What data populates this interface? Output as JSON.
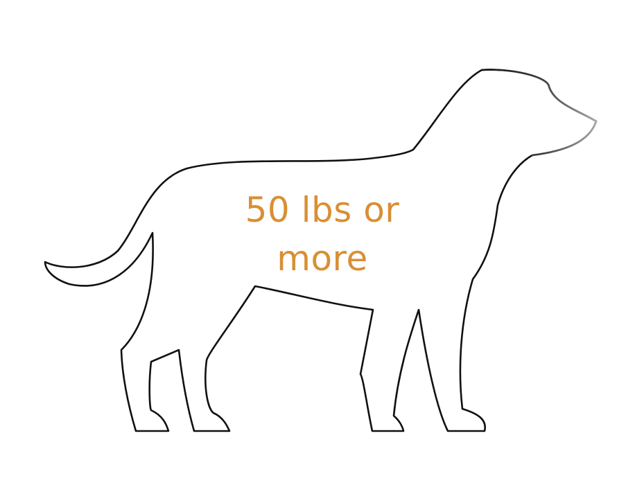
{
  "label": {
    "line1": "50 lbs or",
    "line2": "more"
  },
  "colors": {
    "label_text": "#D98F35",
    "outline": "#111111",
    "background": "#FFFFFF"
  },
  "illustration": {
    "icon": "dog-silhouette-outline-icon"
  }
}
